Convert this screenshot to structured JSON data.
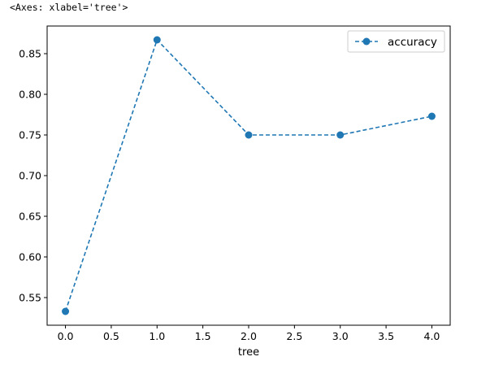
{
  "output_repr": "<Axes: xlabel='tree'>",
  "chart_data": {
    "type": "line",
    "x": [
      0,
      1,
      2,
      3,
      4
    ],
    "series": [
      {
        "name": "accuracy",
        "values": [
          0.533,
          0.867,
          0.75,
          0.75,
          0.773
        ],
        "color": "#1f77b4",
        "linestyle": "dashed",
        "marker": "circle"
      }
    ],
    "xlabel": "tree",
    "ylabel": "",
    "xlim": [
      -0.2,
      4.2
    ],
    "ylim": [
      0.516,
      0.884
    ],
    "xticks": [
      0,
      0.5,
      1,
      1.5,
      2,
      2.5,
      3,
      3.5,
      4
    ],
    "xtick_labels": [
      "0.0",
      "0.5",
      "1.0",
      "1.5",
      "2.0",
      "2.5",
      "3.0",
      "3.5",
      "4.0"
    ],
    "yticks": [
      0.55,
      0.6,
      0.65,
      0.7,
      0.75,
      0.8,
      0.85
    ],
    "ytick_labels": [
      "0.55",
      "0.60",
      "0.65",
      "0.70",
      "0.75",
      "0.80",
      "0.85"
    ],
    "grid": false,
    "legend_position": "top-right"
  }
}
